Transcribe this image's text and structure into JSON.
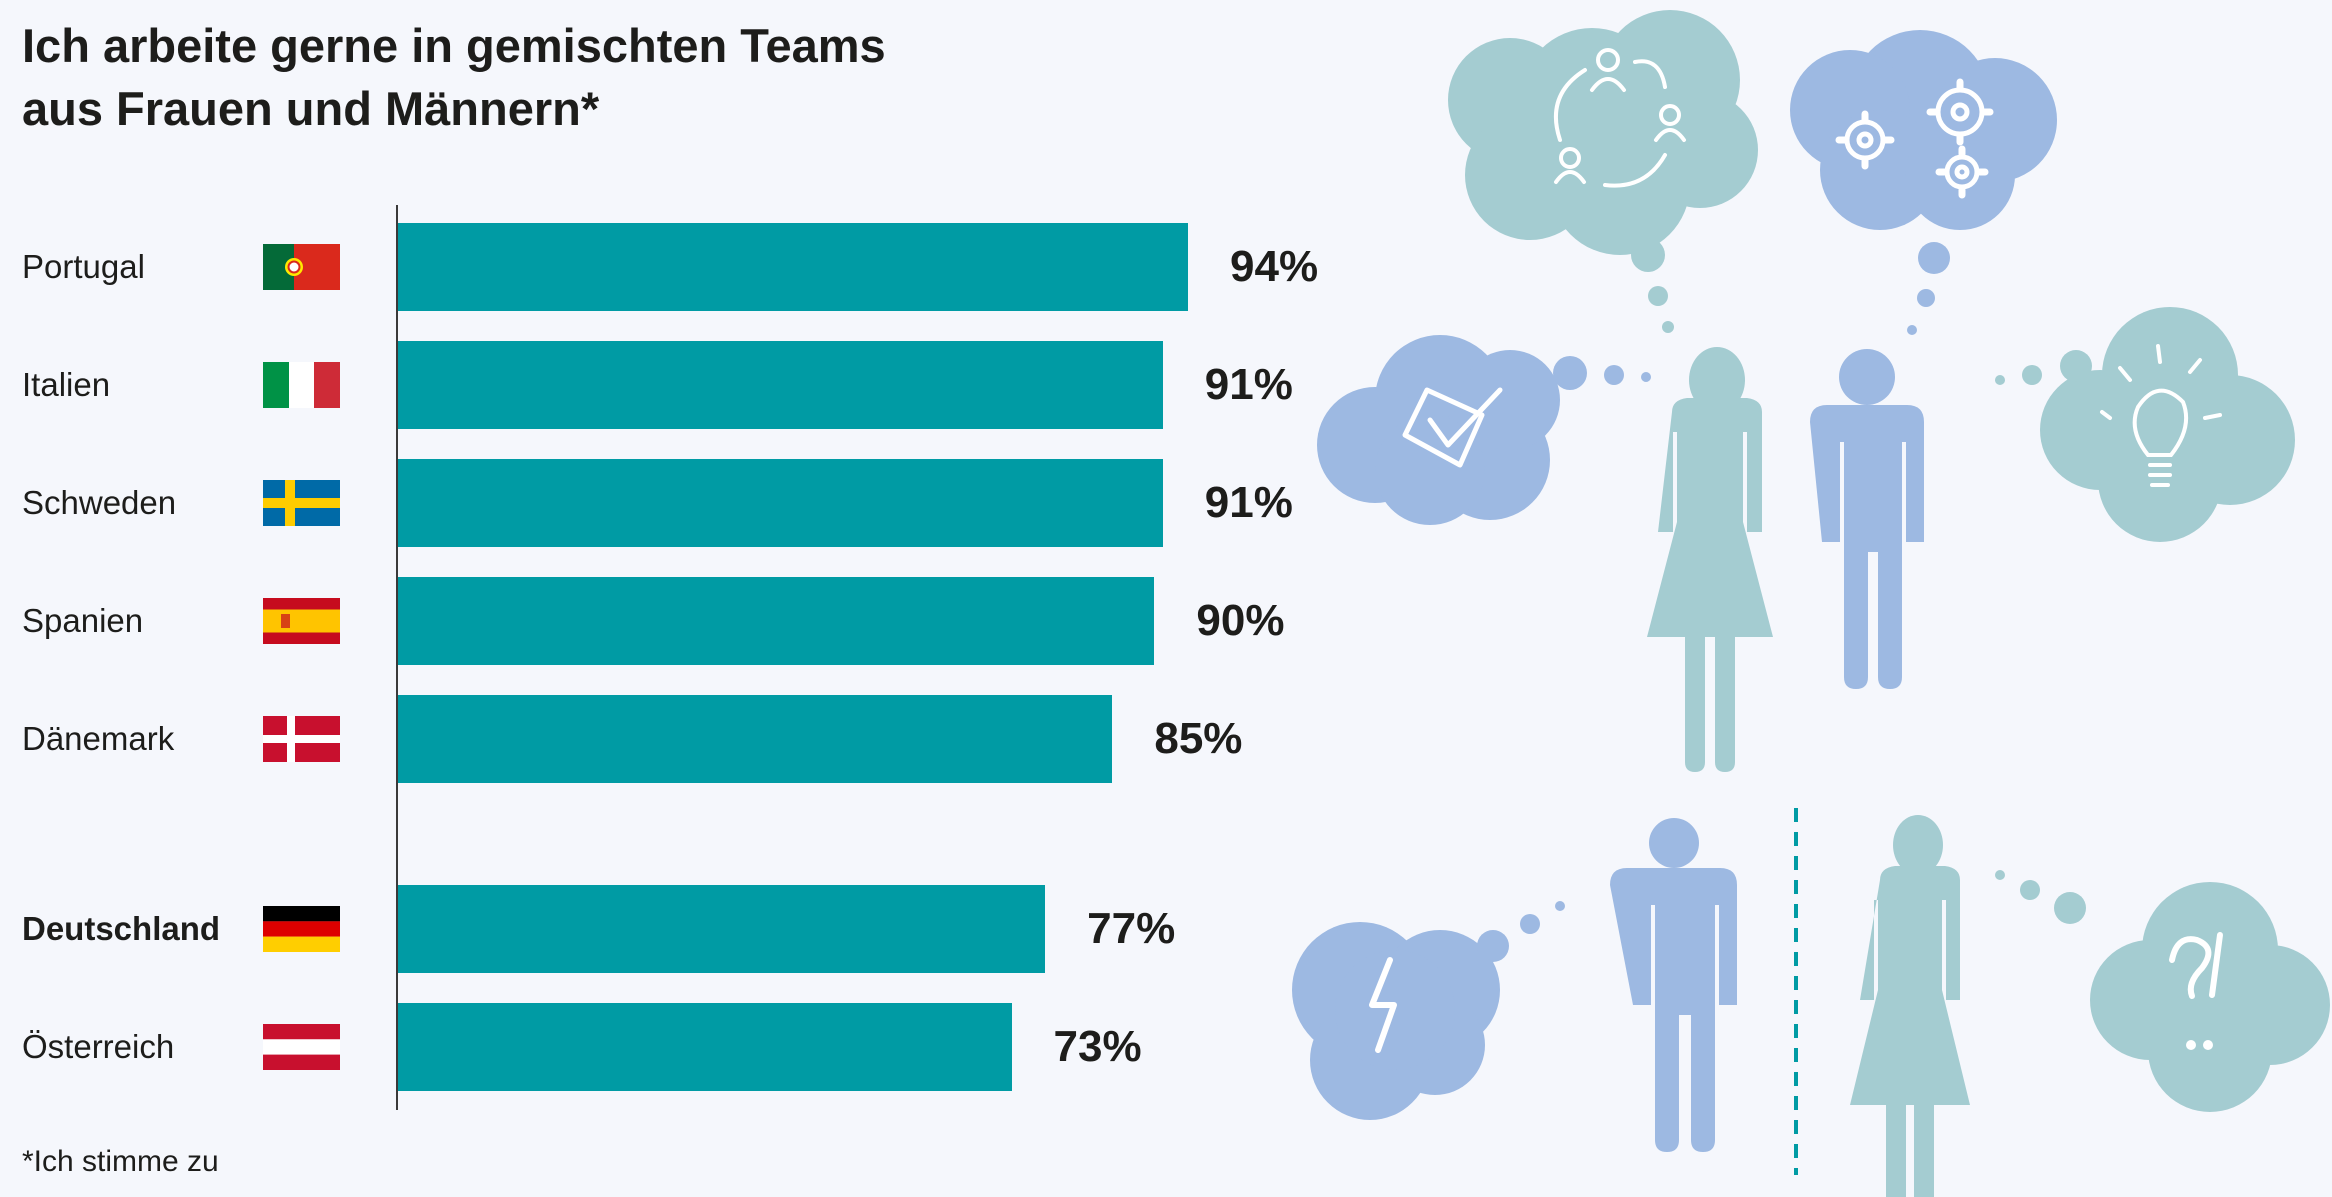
{
  "title_lines": [
    "Ich arbeite gerne in gemischten Teams",
    "aus Frauen und Männern*"
  ],
  "footnote": "*Ich stimme zu",
  "colors": {
    "bar": "#009ba4",
    "teal_light": "#a4ccd1",
    "blue_light": "#9db9e2",
    "background": "#f5f7fc"
  },
  "icons": [
    "people-cycle-icon",
    "gears-icon",
    "checkmark-icon",
    "lightbulb-icon",
    "lightning-icon",
    "question-exclamation-icon",
    "woman-icon",
    "man-icon"
  ],
  "chart_data": {
    "type": "bar",
    "orientation": "horizontal",
    "categories": [
      "Portugal",
      "Italien",
      "Schweden",
      "Spanien",
      "Dänemark",
      "Deutschland",
      "Österreich"
    ],
    "values": [
      94,
      91,
      91,
      90,
      85,
      77,
      73
    ],
    "value_labels": [
      "94%",
      "91%",
      "91%",
      "90%",
      "85%",
      "77%",
      "73%"
    ],
    "highlighted": "Deutschland",
    "flags": [
      "portugal",
      "italy",
      "sweden",
      "spain",
      "denmark",
      "germany",
      "austria"
    ],
    "xlim": [
      0,
      100
    ],
    "grid": false,
    "legend": "none"
  }
}
